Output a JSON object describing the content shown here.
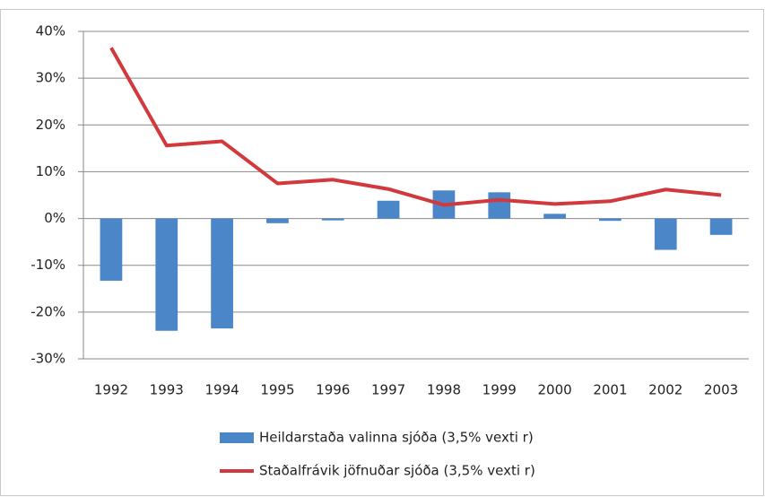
{
  "chart_data": {
    "type": "bar-line",
    "categories": [
      "1992",
      "1993",
      "1994",
      "1995",
      "1996",
      "1997",
      "1998",
      "1999",
      "2000",
      "2001",
      "2002",
      "2003"
    ],
    "series": [
      {
        "name": "Heildarstaða valinna sjóða (3,5% vexti r)",
        "type": "bar",
        "color": "#4a86c8",
        "values": [
          -13.3,
          -24,
          -23.5,
          -1,
          -0.4,
          3.8,
          6,
          5.6,
          1,
          -0.5,
          -6.7,
          -3.5
        ]
      },
      {
        "name": "Staðalfrávik jöfnuðar sjóða (3,5% vexti r)",
        "type": "line",
        "color": "#d2393c",
        "values": [
          36.5,
          15.6,
          16.5,
          7.5,
          8.3,
          6.3,
          2.9,
          4,
          3.1,
          3.7,
          6.2,
          5
        ]
      }
    ],
    "ylim": [
      -30,
      40
    ],
    "yticks": [
      {
        "value": -30,
        "label": "-30%"
      },
      {
        "value": -20,
        "label": "-20%"
      },
      {
        "value": -10,
        "label": "-10%"
      },
      {
        "value": 0,
        "label": "0%"
      },
      {
        "value": 10,
        "label": "10%"
      },
      {
        "value": 20,
        "label": "20%"
      },
      {
        "value": 30,
        "label": "30%"
      },
      {
        "value": 40,
        "label": "40%"
      }
    ],
    "grid": true
  }
}
